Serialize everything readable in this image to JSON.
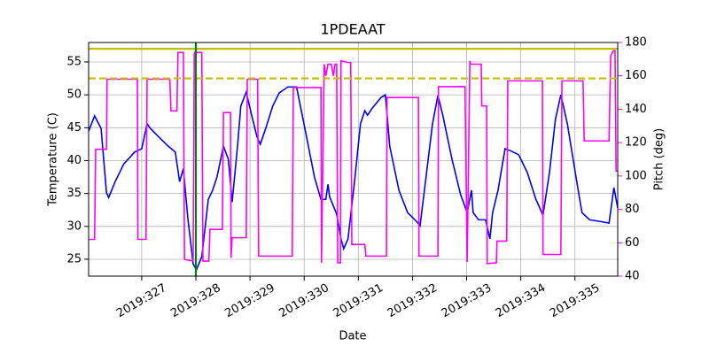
{
  "chart_data": {
    "type": "line",
    "title": "1PDEAAT",
    "xlabel": "Date",
    "ylabel": "Temperature (C)",
    "y2label": "Pitch (deg)",
    "xlim": [
      326.02,
      335.79
    ],
    "xticks": [
      {
        "value": 327,
        "label": "2019:327"
      },
      {
        "value": 328,
        "label": "2019:328"
      },
      {
        "value": 329,
        "label": "2019:329"
      },
      {
        "value": 330,
        "label": "2019:330"
      },
      {
        "value": 331,
        "label": "2019:331"
      },
      {
        "value": 332,
        "label": "2019:332"
      },
      {
        "value": 333,
        "label": "2019:333"
      },
      {
        "value": 334,
        "label": "2019:334"
      },
      {
        "value": 335,
        "label": "2019:335"
      }
    ],
    "ylim": [
      22.44,
      57.96
    ],
    "yticks": [
      25,
      30,
      35,
      40,
      45,
      50,
      55
    ],
    "y2lim": [
      40,
      180
    ],
    "y2ticks": [
      40,
      60,
      80,
      100,
      120,
      140,
      160,
      180
    ],
    "grid": true,
    "y2color": "#ff00ff",
    "hlines": [
      {
        "value": 57,
        "color": "#bfbf00",
        "style": "solid"
      },
      {
        "value": 52.5,
        "color": "#bfbf00",
        "style": "dashed"
      }
    ],
    "vlines": [
      {
        "value": 328,
        "color": "#007f00"
      }
    ],
    "series": [
      {
        "name": "Temperature",
        "color": "#0000ff",
        "axis": "y",
        "x": [
          326.02,
          326.13,
          326.25,
          326.35,
          326.39,
          326.51,
          326.67,
          326.87,
          327.0,
          327.1,
          327.16,
          327.29,
          327.49,
          327.62,
          327.7,
          327.77,
          327.85,
          327.95,
          328.01,
          328.11,
          328.23,
          328.31,
          328.39,
          328.51,
          328.6,
          328.67,
          328.77,
          328.83,
          328.93,
          329.03,
          329.13,
          329.19,
          329.29,
          329.42,
          329.54,
          329.7,
          329.86,
          330.03,
          330.19,
          330.31,
          330.4,
          330.44,
          330.47,
          330.6,
          330.68,
          330.73,
          330.81,
          330.93,
          331.04,
          331.12,
          331.17,
          331.26,
          331.42,
          331.5,
          331.58,
          331.75,
          331.91,
          332.07,
          332.14,
          332.24,
          332.37,
          332.47,
          332.56,
          332.73,
          332.89,
          333.01,
          333.09,
          333.12,
          333.22,
          333.35,
          333.43,
          333.48,
          333.58,
          333.71,
          333.81,
          333.96,
          334.12,
          334.28,
          334.41,
          334.53,
          334.64,
          334.74,
          334.86,
          335.02,
          335.13,
          335.27,
          335.43,
          335.63,
          335.72,
          335.79
        ],
        "values": [
          44.5,
          46.8,
          44.9,
          35.1,
          34.4,
          36.8,
          39.5,
          41.3,
          41.8,
          45.6,
          44.9,
          43.8,
          42.2,
          41.3,
          36.8,
          38.8,
          31.4,
          24.3,
          23.4,
          25.4,
          34.1,
          35.5,
          37.5,
          42.2,
          40.2,
          33.7,
          42.2,
          48.3,
          50.4,
          46.9,
          43.6,
          42.5,
          44.9,
          48.3,
          50.3,
          51.2,
          51.2,
          44.2,
          37.5,
          34.1,
          34.1,
          36.4,
          34.5,
          31.9,
          28.1,
          26.6,
          28.1,
          36.8,
          45.6,
          47.6,
          46.9,
          48.0,
          49.6,
          50.0,
          42.2,
          35.5,
          32.1,
          30.8,
          30.1,
          36.8,
          45.6,
          49.9,
          46.9,
          40.2,
          34.8,
          32.1,
          35.5,
          32.1,
          31.0,
          31.0,
          28.1,
          32.1,
          35.5,
          41.8,
          41.5,
          40.9,
          38.2,
          34.1,
          31.7,
          38.2,
          46.3,
          50.0,
          45.6,
          37.5,
          32.1,
          31.0,
          30.8,
          30.5,
          35.9,
          32.8
        ]
      },
      {
        "name": "Pitch",
        "color": "#ff00ff",
        "axis": "y2",
        "x": [
          326.02,
          326.13,
          326.15,
          326.35,
          326.36,
          326.92,
          326.93,
          327.08,
          327.1,
          327.52,
          327.54,
          327.65,
          327.67,
          327.77,
          327.79,
          327.95,
          327.97,
          327.98,
          328.11,
          328.13,
          328.24,
          328.26,
          328.49,
          328.51,
          328.64,
          328.65,
          328.67,
          328.93,
          328.95,
          329.14,
          329.16,
          329.78,
          329.8,
          330.31,
          330.32,
          330.37,
          330.4,
          330.44,
          330.5,
          330.54,
          330.57,
          330.6,
          330.62,
          330.67,
          330.68,
          330.81,
          330.86,
          330.88,
          331.12,
          331.14,
          331.52,
          331.53,
          332.11,
          332.12,
          332.47,
          332.48,
          332.97,
          333.01,
          333.06,
          333.07,
          333.27,
          333.28,
          333.37,
          333.38,
          333.55,
          333.56,
          333.74,
          333.76,
          334.4,
          334.41,
          334.74,
          334.76,
          335.15,
          335.17,
          335.63,
          335.66,
          335.71,
          335.74,
          335.76,
          335.79
        ],
        "values": [
          62,
          62,
          116,
          116,
          158,
          158,
          62,
          62,
          158,
          158,
          139,
          139,
          174,
          174,
          50,
          49,
          173,
          174,
          174,
          49,
          49,
          68,
          68,
          138,
          138,
          51,
          63,
          63,
          158,
          158,
          52,
          52,
          153,
          153,
          48,
          167,
          160,
          167,
          167,
          160,
          167,
          167,
          48,
          48,
          169,
          168,
          168,
          59,
          59,
          52,
          52,
          147,
          147,
          52,
          52,
          153.5,
          153.5,
          48.5,
          169,
          167,
          167,
          142,
          142,
          47.5,
          48,
          61,
          61,
          157,
          157,
          53,
          53,
          157,
          157,
          121,
          121,
          172,
          175,
          175,
          103,
          103
        ]
      }
    ]
  }
}
